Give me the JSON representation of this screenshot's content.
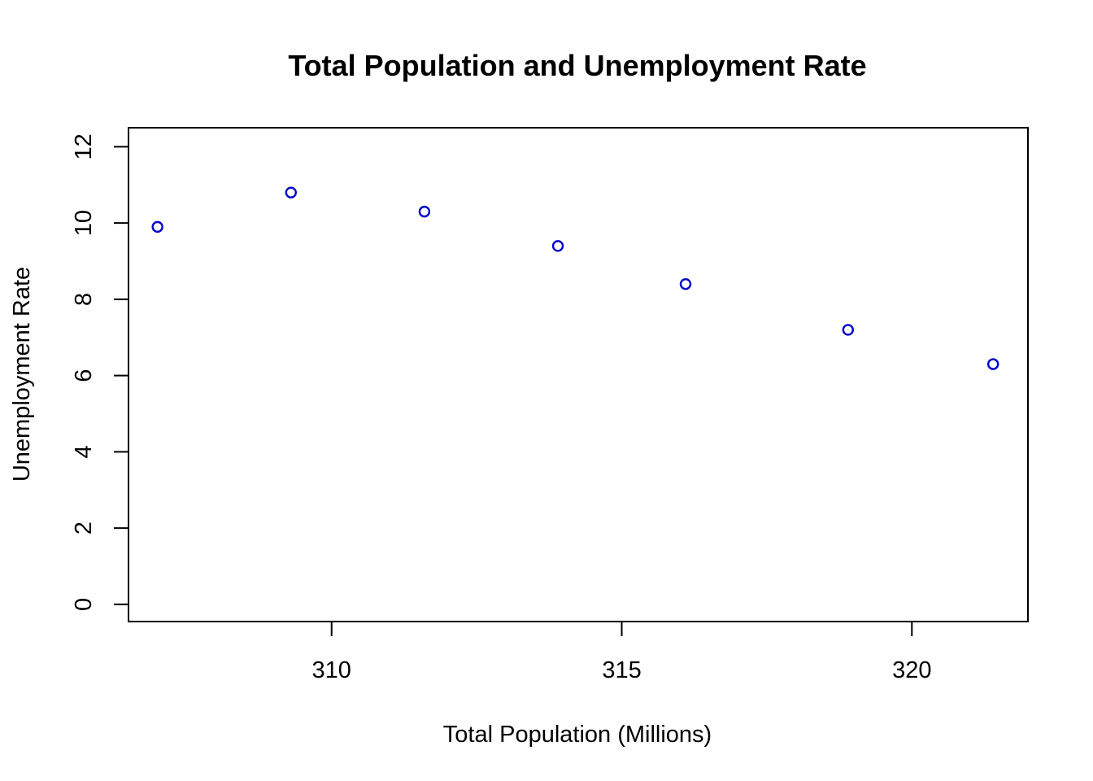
{
  "chart_data": {
    "type": "scatter",
    "title": "Total Population and Unemployment Rate",
    "xlabel": "Total Population (Millions)",
    "ylabel": "Unemployment Rate",
    "xlim": [
      306.5,
      322.0
    ],
    "ylim": [
      -0.45,
      12.5
    ],
    "x_ticks": [
      310,
      315,
      320
    ],
    "y_ticks": [
      0,
      2,
      4,
      6,
      8,
      10,
      12
    ],
    "grid": false,
    "legend": "none",
    "point_color": "#0000CD",
    "series": [
      {
        "x": [
          307.0,
          309.3,
          311.6,
          313.9,
          316.1,
          318.9,
          321.4
        ],
        "y": [
          9.9,
          10.8,
          10.3,
          9.4,
          8.4,
          7.2,
          6.3
        ]
      }
    ]
  }
}
